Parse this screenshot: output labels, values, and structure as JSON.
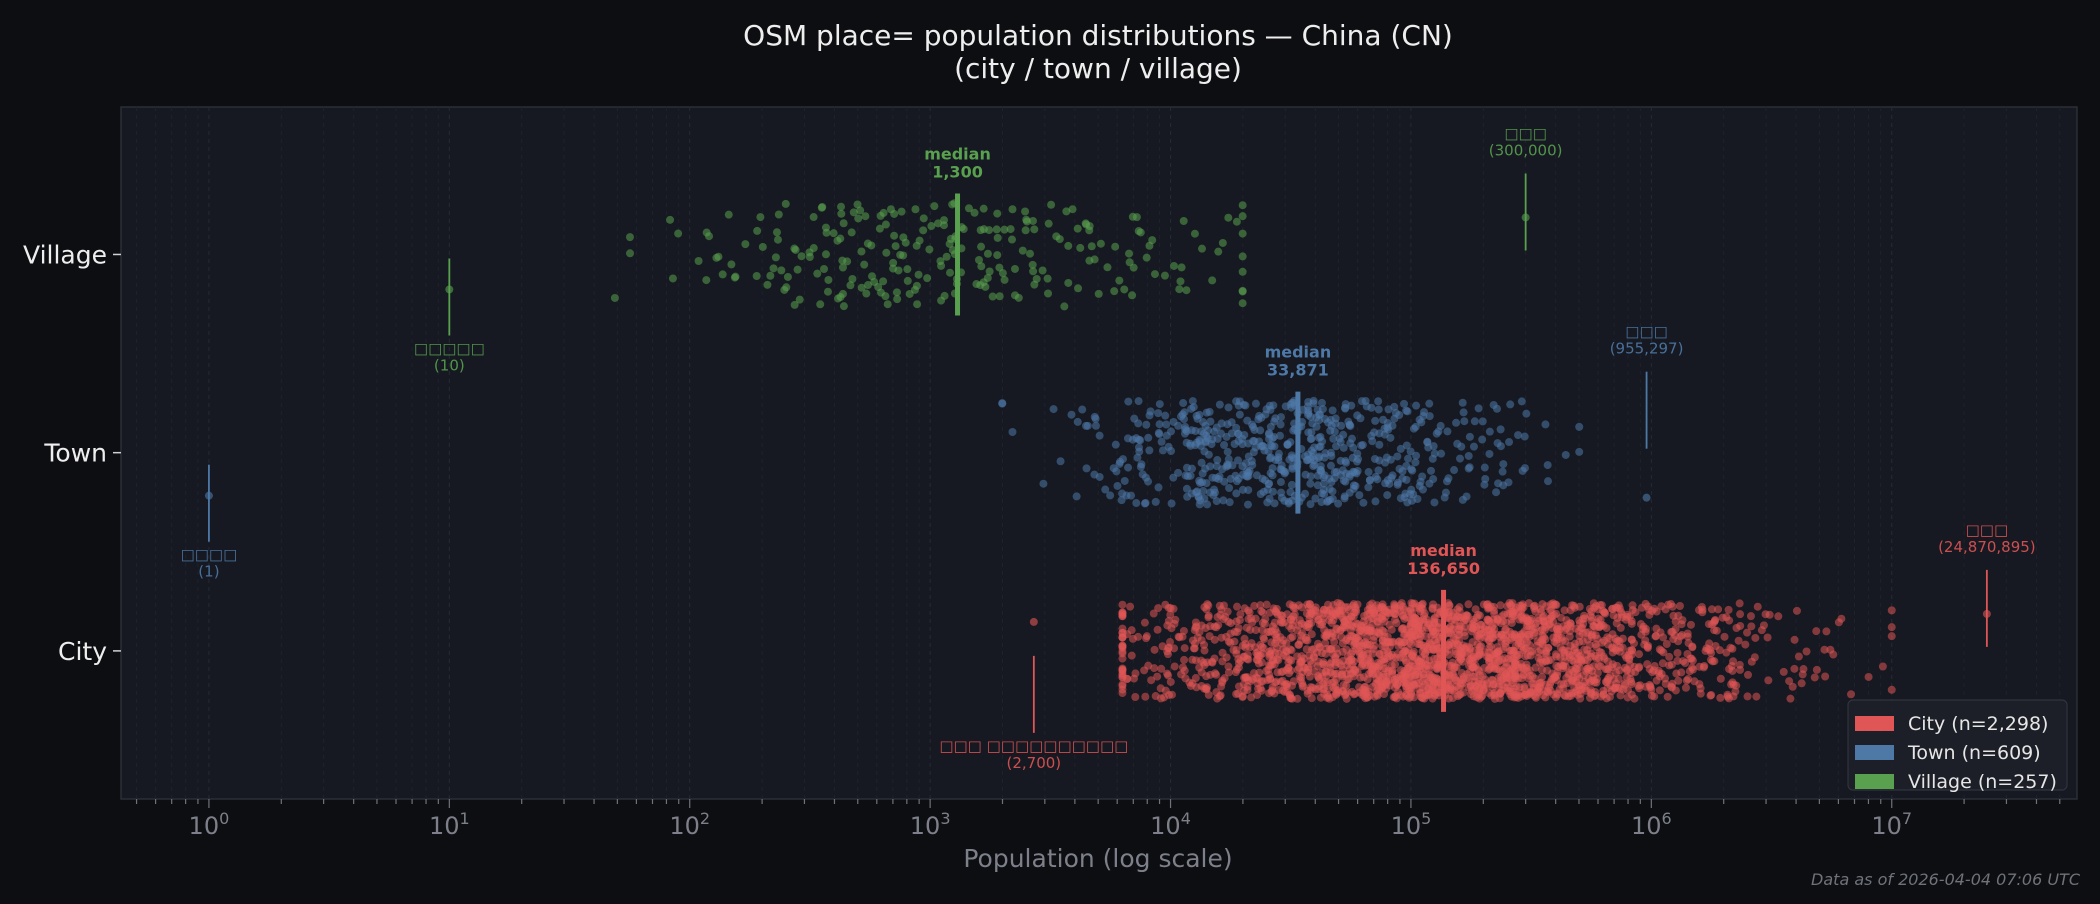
{
  "chart_data": {
    "type": "scatter",
    "title": "OSM place= population distributions — China (CN)",
    "subtitle": "(city / town / village)",
    "xlabel": "Population (log scale)",
    "xscale": "log",
    "xlim": [
      0.43,
      59000000
    ],
    "x_ticks": [
      {
        "value": 1,
        "base": "10",
        "exp": "0"
      },
      {
        "value": 10,
        "base": "10",
        "exp": "1"
      },
      {
        "value": 100,
        "base": "10",
        "exp": "2"
      },
      {
        "value": 1000,
        "base": "10",
        "exp": "3"
      },
      {
        "value": 10000,
        "base": "10",
        "exp": "4"
      },
      {
        "value": 100000,
        "base": "10",
        "exp": "5"
      },
      {
        "value": 1000000,
        "base": "10",
        "exp": "6"
      },
      {
        "value": 10000000,
        "base": "10",
        "exp": "7"
      }
    ],
    "categories": [
      "Village",
      "Town",
      "City"
    ],
    "grid": true,
    "legend_position": "bottom-right",
    "median_word": "median",
    "series": [
      {
        "key": "city",
        "name": "City",
        "legend": "City  (n=2,298)",
        "n": 2298,
        "color": "#e05555",
        "median": 136650,
        "median_label": "136,650",
        "min": {
          "label": "□□□ □□□□□□□□□□",
          "value": 2700,
          "value_label": "(2,700)"
        },
        "max": {
          "label": "□□□",
          "value": 24870895,
          "value_label": "(24,870,895)"
        }
      },
      {
        "key": "town",
        "name": "Town",
        "legend": "Town  (n=609)",
        "n": 609,
        "color": "#4e79a7",
        "median": 33871,
        "median_label": "33,871",
        "min": {
          "label": "□□□□",
          "value": 1,
          "value_label": "(1)"
        },
        "max": {
          "label": "□□□",
          "value": 955297,
          "value_label": "(955,297)"
        }
      },
      {
        "key": "village",
        "name": "Village",
        "legend": "Village  (n=257)",
        "n": 257,
        "color": "#59a14f",
        "median": 1300,
        "median_label": "1,300",
        "min": {
          "label": "□□□□□",
          "value": 10,
          "value_label": "(10)"
        },
        "max": {
          "label": "□□□",
          "value": 300000,
          "value_label": "(300,000)"
        }
      }
    ]
  },
  "footer": "Data as of 2026-04-04 07:06 UTC"
}
